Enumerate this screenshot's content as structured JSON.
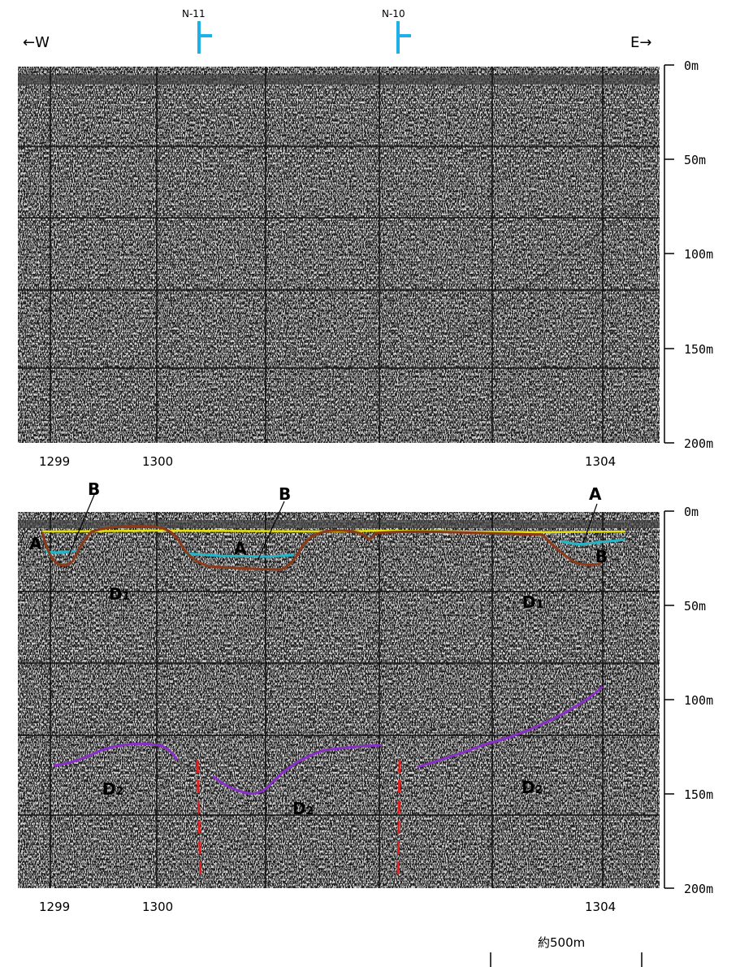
{
  "direction": {
    "west": "←W",
    "east": "E→"
  },
  "wells": [
    "N-11",
    "N-10"
  ],
  "depth_ticks": [
    "0m",
    "50m",
    "100m",
    "150m",
    "200m"
  ],
  "cdp_labels": [
    "1299",
    "1300",
    "1304"
  ],
  "units": {
    "A": "A",
    "B": "B",
    "D1": {
      "main": "D",
      "sub": "1"
    },
    "D2": {
      "main": "D",
      "sub": "2"
    }
  },
  "scale_bar": "約500m",
  "colors": {
    "seismic": "#7a7a7a",
    "horizon_A": "#e6e000",
    "horizon_cyan": "#22b6c8",
    "horizon_B": "#8b3a1a",
    "horizon_D2": "#8a2fc8",
    "fault": "#e02020",
    "well_marker": "#1fb0e8"
  }
}
